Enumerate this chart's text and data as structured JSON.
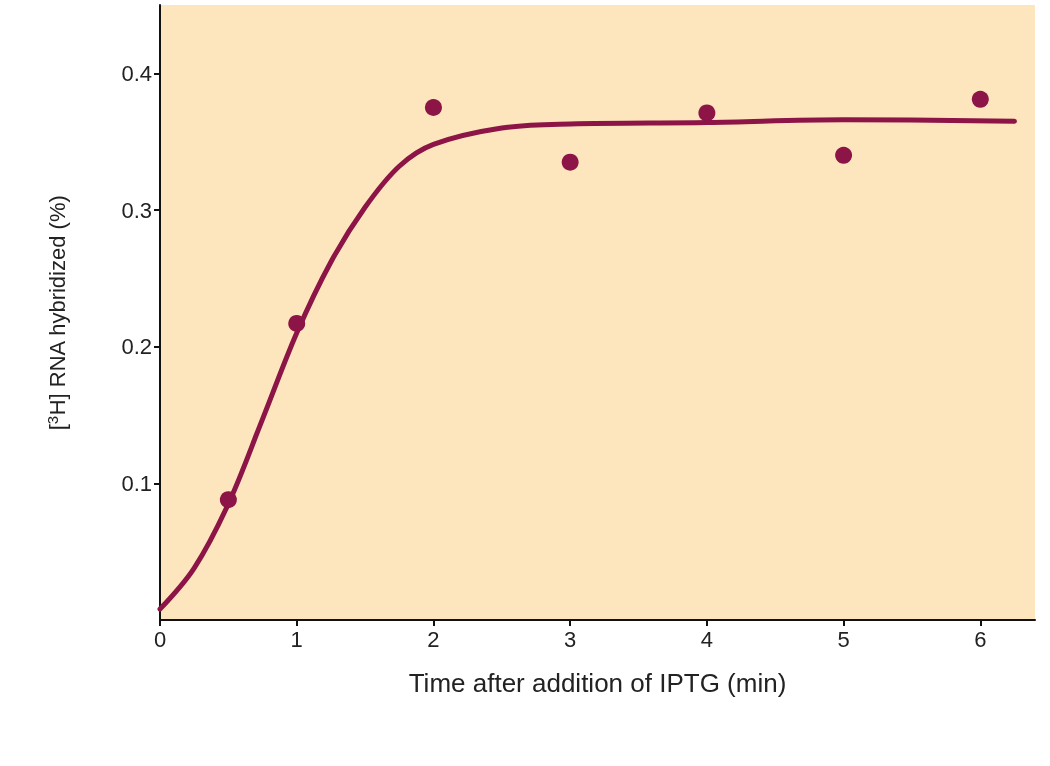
{
  "chart_data": {
    "type": "scatter",
    "xlabel": "Time after addition of IPTG (min)",
    "ylabel": "[$^{3}$H] RNA hybridized (%)",
    "xlim": [
      0,
      6.4
    ],
    "xticks": [
      0,
      1,
      2,
      3,
      4,
      5,
      6
    ],
    "ylim": [
      0,
      0.45
    ],
    "yticks": [
      0.1,
      0.2,
      0.3,
      0.4
    ],
    "grid": false,
    "marker": "circle",
    "series": [
      {
        "type": "line",
        "marker": "none",
        "line_style": "solid",
        "color": "#8c1446",
        "x": [
          0,
          0.25,
          0.5,
          0.75,
          1,
          1.25,
          1.5,
          1.75,
          2,
          2.5,
          3,
          4,
          5,
          6.25
        ],
        "values": [
          0.008,
          0.038,
          0.085,
          0.147,
          0.21,
          0.262,
          0.302,
          0.332,
          0.348,
          0.36,
          0.363,
          0.364,
          0.366,
          0.365
        ]
      },
      {
        "color": "#8c1446",
        "x": [
          0.5,
          1,
          2,
          3,
          4,
          5,
          6
        ],
        "values": [
          0.088,
          0.217,
          0.375,
          0.335,
          0.371,
          0.34,
          0.381
        ]
      }
    ]
  }
}
